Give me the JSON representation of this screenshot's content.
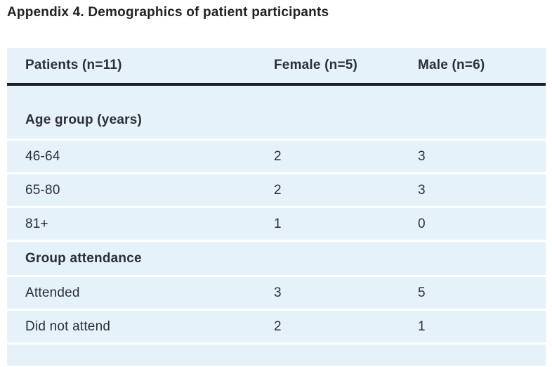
{
  "title": "Appendix 4. Demographics of patient participants",
  "table": {
    "columns": [
      "Patients (n=11)",
      "Female (n=5)",
      "Male (n=6)"
    ],
    "sections": [
      {
        "label": "Age group (years)",
        "rows": [
          {
            "label": "46-64",
            "female": "2",
            "male": "3"
          },
          {
            "label": "65-80",
            "female": "2",
            "male": "3"
          },
          {
            "label": "81+",
            "female": "1",
            "male": "0"
          }
        ]
      },
      {
        "label": "Group attendance",
        "rows": [
          {
            "label": "Attended",
            "female": "3",
            "male": "5"
          },
          {
            "label": "Did not attend",
            "female": "2",
            "male": "1"
          }
        ]
      }
    ],
    "colors": {
      "row_background": "#e6f2fa",
      "header_rule": "#1e1f23",
      "text": "#2b2e36",
      "title_text": "#231f24"
    }
  }
}
